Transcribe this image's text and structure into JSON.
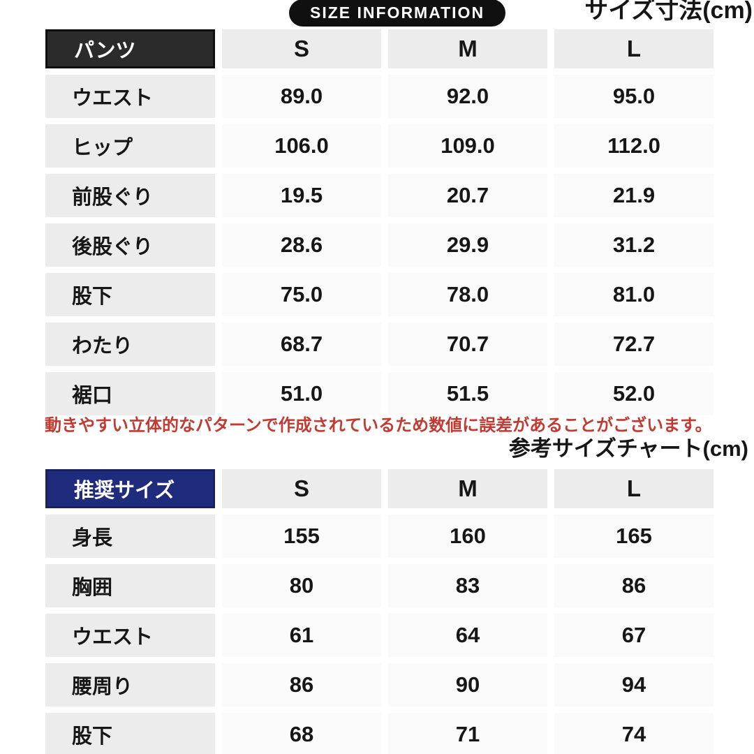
{
  "header": {
    "badge_label": "SIZE INFORMATION",
    "unit_title": "サイズ寸法(cm)"
  },
  "size_table": {
    "corner_label": "パンツ",
    "corner_bg": "#2b2b2b",
    "corner_border": "#0f0f0f",
    "columns": [
      "S",
      "M",
      "L"
    ],
    "rows": [
      {
        "label": "ウエスト",
        "values": [
          "89.0",
          "92.0",
          "95.0"
        ]
      },
      {
        "label": "ヒップ",
        "values": [
          "106.0",
          "109.0",
          "112.0"
        ]
      },
      {
        "label": "前股ぐり",
        "values": [
          "19.5",
          "20.7",
          "21.9"
        ]
      },
      {
        "label": "後股ぐり",
        "values": [
          "28.6",
          "29.9",
          "31.2"
        ]
      },
      {
        "label": "股下",
        "values": [
          "75.0",
          "78.0",
          "81.0"
        ]
      },
      {
        "label": "わたり",
        "values": [
          "68.7",
          "70.7",
          "72.7"
        ]
      },
      {
        "label": "裾口",
        "values": [
          "51.0",
          "51.5",
          "52.0"
        ]
      }
    ]
  },
  "note": {
    "text": "動きやすい立体的なパターンで作成されているため数値に誤差があることがございます。",
    "color": "#c23a31"
  },
  "reference_table": {
    "title": "参考サイズチャート(cm)",
    "corner_label": "推奨サイズ",
    "corner_bg": "#1f2b7d",
    "corner_border": "#19225f",
    "columns": [
      "S",
      "M",
      "L"
    ],
    "rows": [
      {
        "label": "身長",
        "values": [
          "155",
          "160",
          "165"
        ]
      },
      {
        "label": "胸囲",
        "values": [
          "80",
          "83",
          "86"
        ]
      },
      {
        "label": "ウエスト",
        "values": [
          "61",
          "64",
          "67"
        ]
      },
      {
        "label": "腰周り",
        "values": [
          "86",
          "90",
          "94"
        ]
      },
      {
        "label": "股下",
        "values": [
          "68",
          "71",
          "74"
        ]
      }
    ]
  },
  "colors": {
    "label_cell_bg": "#ececec",
    "value_cell_bg": "#fafafa",
    "badge_bg": "#101010",
    "text": "#161616"
  }
}
